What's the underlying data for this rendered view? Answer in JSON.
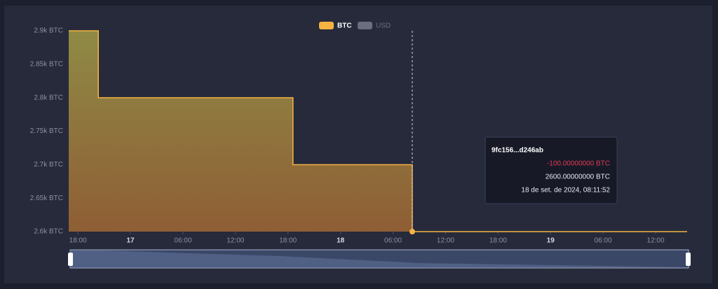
{
  "chart_data": {
    "type": "step-area",
    "x": [
      "2024-09-16T16:57",
      "2024-09-16T20:20",
      "2024-09-17T18:34",
      "2024-09-18T08:11:52",
      "2024-09-19T15:36"
    ],
    "values": [
      2900,
      2800,
      2700,
      2600,
      2600
    ],
    "color": "#f5b342",
    "xlim": [
      "2024-09-16T16:57",
      "2024-09-19T15:36"
    ],
    "xticks": [
      {
        "value": "2024-09-16T18:00",
        "label": "18:00"
      },
      {
        "value": "2024-09-17T00:00",
        "label": "17"
      },
      {
        "value": "2024-09-17T06:00",
        "label": "06:00"
      },
      {
        "value": "2024-09-17T12:00",
        "label": "12:00"
      },
      {
        "value": "2024-09-17T18:00",
        "label": "18:00"
      },
      {
        "value": "2024-09-18T00:00",
        "label": "18"
      },
      {
        "value": "2024-09-18T06:00",
        "label": "06:00"
      },
      {
        "value": "2024-09-18T12:00",
        "label": "12:00"
      },
      {
        "value": "2024-09-18T18:00",
        "label": "18:00"
      },
      {
        "value": "2024-09-19T00:00",
        "label": "19"
      },
      {
        "value": "2024-09-19T06:00",
        "label": "06:00"
      },
      {
        "value": "2024-09-19T12:00",
        "label": "12:00"
      }
    ],
    "ylim": [
      2600,
      2900
    ],
    "yticks": [
      {
        "value": 2600,
        "label": "2.6k BTC"
      },
      {
        "value": 2650,
        "label": "2.65k BTC"
      },
      {
        "value": 2700,
        "label": "2.7k BTC"
      },
      {
        "value": 2750,
        "label": "2.75k BTC"
      },
      {
        "value": 2800,
        "label": "2.8k BTC"
      },
      {
        "value": 2850,
        "label": "2.85k BTC"
      },
      {
        "value": 2900,
        "label": "2.9k BTC"
      }
    ],
    "legend": [
      {
        "name": "BTC",
        "color": "#f5b342",
        "active": true
      },
      {
        "name": "USD",
        "color": "#6b6f7d",
        "active": false
      }
    ],
    "tooltip": {
      "point": 3,
      "title": "9fc156...d246ab",
      "change": "-100.00000000 BTC",
      "balance": "2600.00000000 BTC",
      "date": "18 de set. de 2024, 08:11:52"
    }
  }
}
